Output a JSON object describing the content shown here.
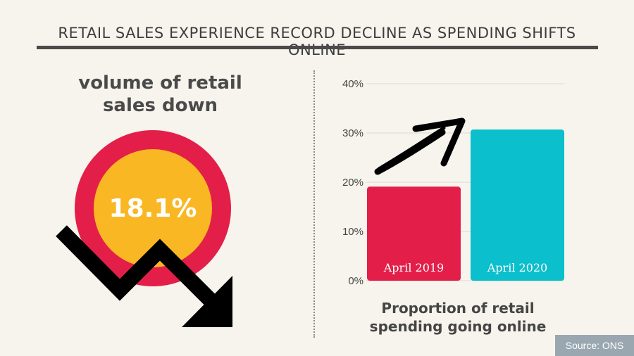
{
  "header": {
    "title": "RETAIL SALES EXPERIENCE RECORD DECLINE AS SPENDING SHIFTS ONLINE"
  },
  "left_panel": {
    "heading_line1": "volume of retail",
    "heading_line2": "sales down",
    "value_label": "18.1%",
    "colors": {
      "outer_circle": "#e31f49",
      "inner_circle": "#f9b724",
      "arrow": "#000000"
    },
    "icon": "downward-zigzag-arrow-icon"
  },
  "chart_data": {
    "type": "bar",
    "categories": [
      "April 2019",
      "April 2020"
    ],
    "values": [
      19.1,
      30.7
    ],
    "colors": [
      "#e31f49",
      "#0bbfcc"
    ],
    "ylim": [
      0,
      40
    ],
    "yticks": [
      "0%",
      "10%",
      "20%",
      "30%",
      "40%"
    ],
    "ytick_values": [
      0,
      10,
      20,
      30,
      40
    ],
    "grid": true,
    "caption_line1": "Proportion of retail",
    "caption_line2": "spending going online",
    "icon": "upward-arrow-icon"
  },
  "footer": {
    "source": "Source: ONS"
  }
}
